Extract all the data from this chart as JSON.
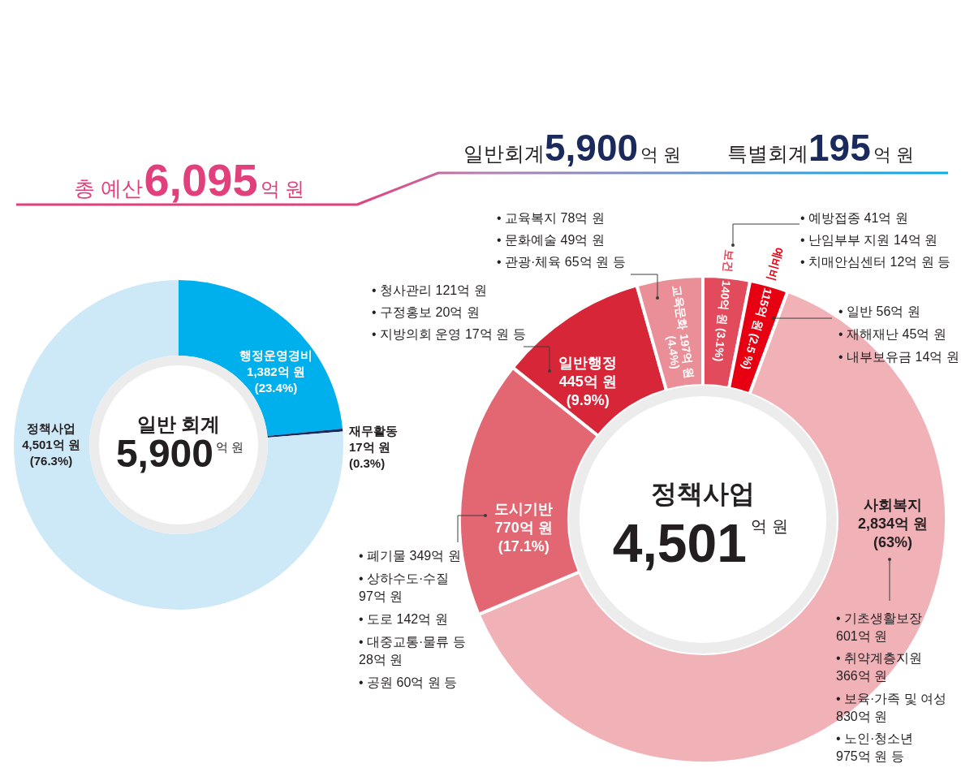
{
  "chart_data": [
    {
      "type": "other",
      "annotations": [
        "총 예산",
        "6,095",
        "억 원",
        "일반회계",
        "5,900",
        "억 원",
        "특별회계",
        "195",
        "억 원"
      ]
    },
    {
      "type": "donut",
      "categories": [
        "행정운영경비",
        "재무활동",
        "정책사업"
      ],
      "values": [
        1382,
        17,
        4501
      ],
      "colors": [
        "#00b0ec",
        "#1b2a5c",
        "#cde9f8"
      ],
      "value_labels": [
        "1,382억 원\n(23.4%)",
        "17억 원\n(0.3%)",
        "4,501억 원\n(76.3%)"
      ],
      "annotations": [
        "일반 회계",
        "5,900",
        "억 원"
      ]
    },
    {
      "type": "donut",
      "categories": [
        "보건",
        "예비비",
        "사회복지",
        "도시기반",
        "일반행정",
        "교육문화"
      ],
      "values": [
        140,
        115,
        2834,
        770,
        445,
        197
      ],
      "colors": [
        "#e14b5c",
        "#e60012",
        "#f0b1b7",
        "#e26772",
        "#d72638",
        "#ea8f98"
      ],
      "value_labels": [
        "140억 원 (3.1%)",
        "115억 원 (2.5 %)",
        "2,834억 원\n(63%)",
        "770억 원\n(17.1%)",
        "445억 원\n(9.9%)",
        "197억 원\n(4.4%)"
      ],
      "annotations": [
        "정책사업",
        "4,501",
        "억 원",
        "• 교육복지 78억 원",
        "• 문화예술 49억 원",
        "• 관광·체육 65억 원 등",
        "• 예방접종 41억 원",
        "• 난임부부 지원 14억 원",
        "• 치매안심센터 12억 원 등",
        "• 청사관리 121억 원",
        "• 구정홍보 20억 원",
        "• 지방의회 운영 17억 원 등",
        "• 일반 56억 원",
        "• 재해재난 45억 원",
        "• 내부보유금 14억 원",
        "• 폐기물 349억 원",
        "• 상하수도·수질\n97억 원",
        "• 도로 142억 원",
        "• 대중교통·물류 등\n28억 원",
        "• 공원 60억 원 등",
        "• 기초생활보장\n601억 원",
        "• 취약계층지원\n366억 원",
        "• 보육·가족 및 여성\n830억 원",
        "• 노인·청소년\n975억 원 등"
      ]
    }
  ]
}
